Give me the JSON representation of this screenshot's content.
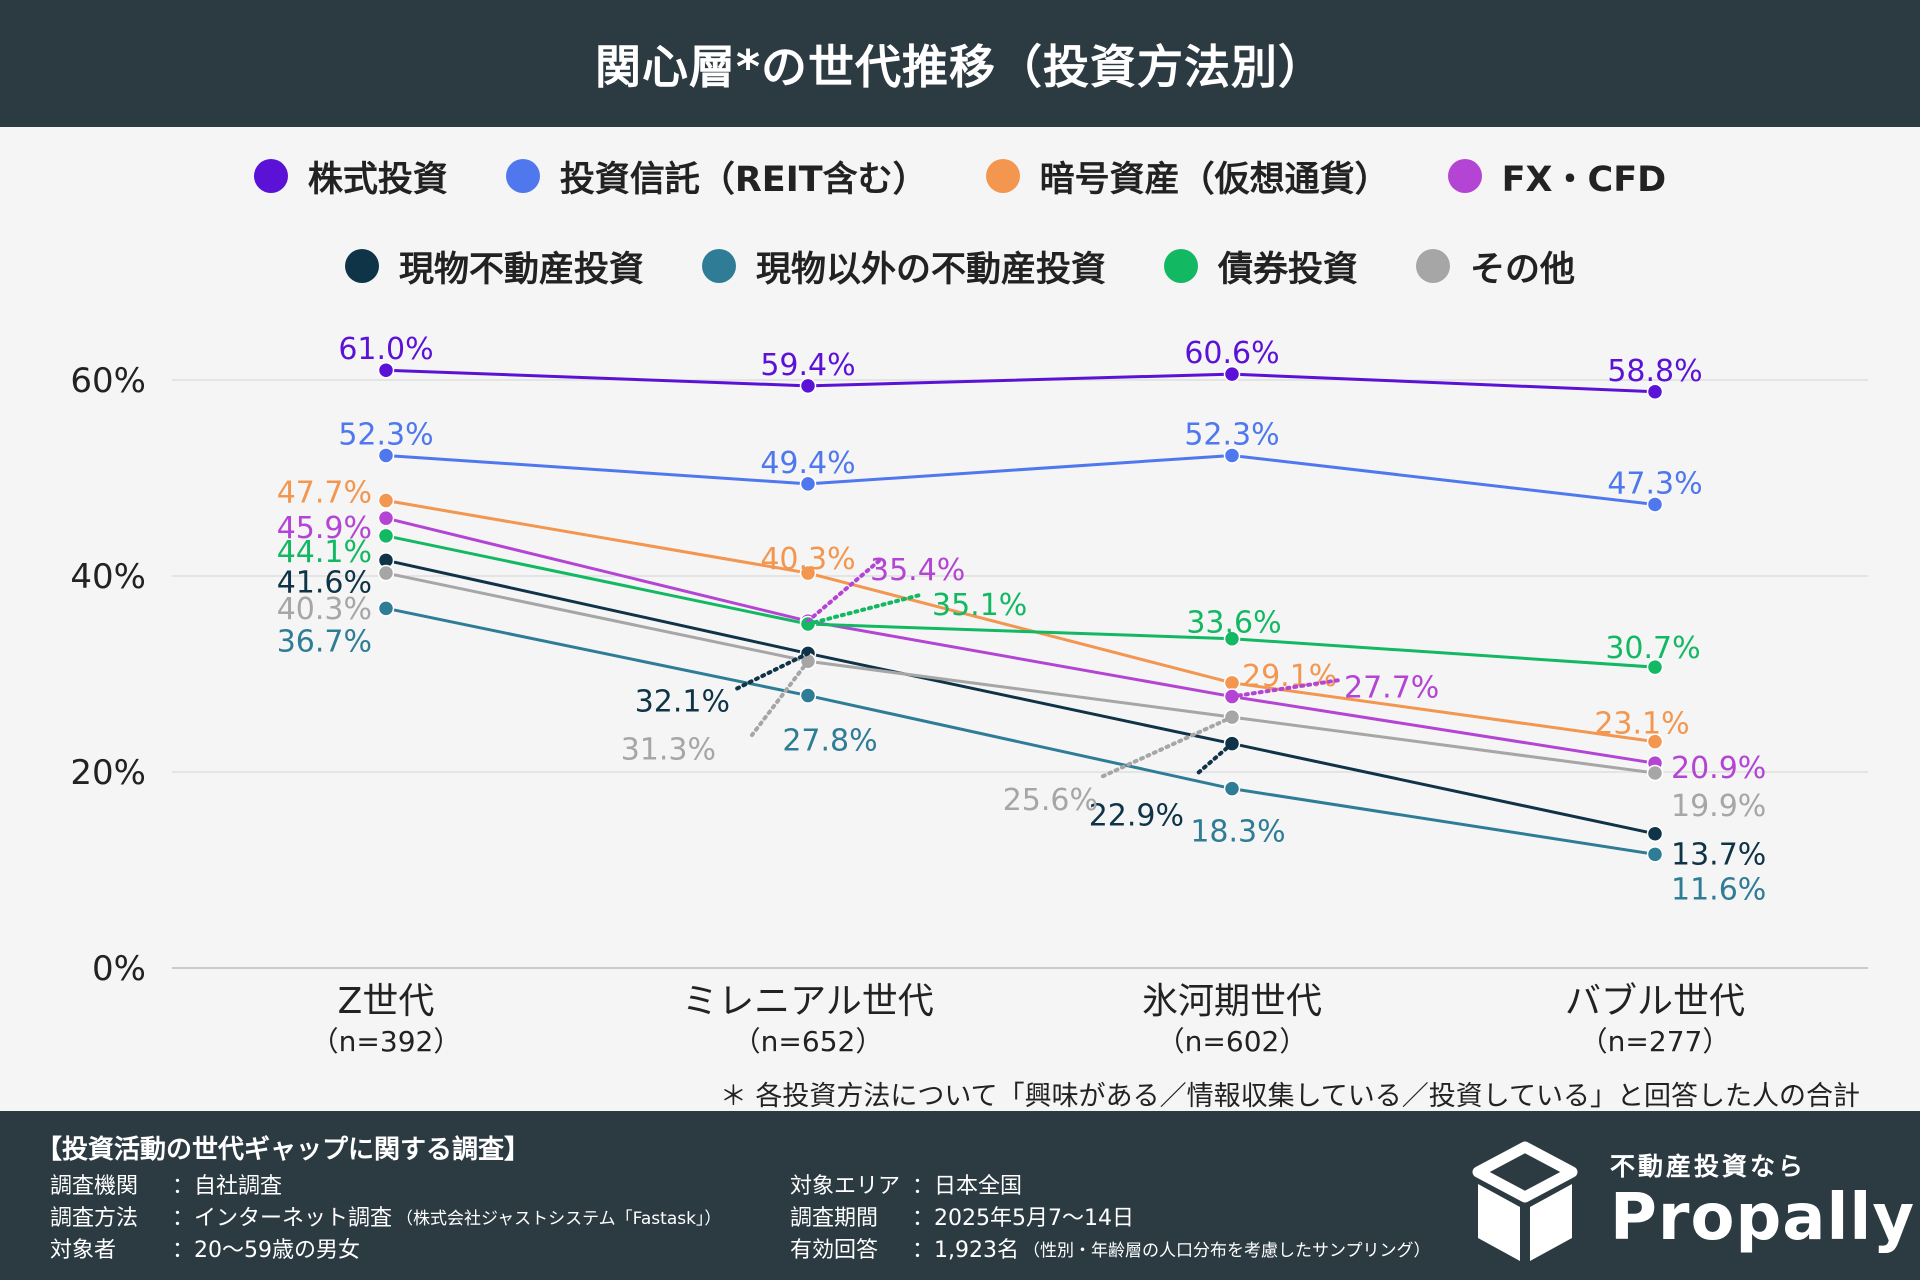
{
  "title": "関心層*の世代推移（投資方法別）",
  "legend_rows": [
    [
      {
        "label": "株式投資",
        "color": "#5b12d6"
      },
      {
        "label": "投資信託（REIT含む）",
        "color": "#4f78ee"
      },
      {
        "label": "暗号資産（仮想通貨）",
        "color": "#f29650"
      },
      {
        "label": "FX・CFD",
        "color": "#b445d4"
      }
    ],
    [
      {
        "label": "現物不動産投資",
        "color": "#0f3347"
      },
      {
        "label": "現物以外の不動産投資",
        "color": "#2f7c96"
      },
      {
        "label": "債券投資",
        "color": "#13b863"
      },
      {
        "label": "その他",
        "color": "#a6a6a6"
      }
    ]
  ],
  "chart_data": {
    "type": "line",
    "categories": [
      "Z世代",
      "ミレニアル世代",
      "氷河期世代",
      "バブル世代"
    ],
    "category_samples": [
      "（n=392）",
      "（n=652）",
      "（n=602）",
      "（n=277）"
    ],
    "y_ticks": [
      "0%",
      "20%",
      "40%",
      "60%"
    ],
    "ylim": [
      0,
      60
    ],
    "grid": true,
    "legend_position": "top",
    "series": [
      {
        "name": "株式投資",
        "color": "#5b12d6",
        "values": [
          61.0,
          59.4,
          60.6,
          58.8
        ],
        "labels": [
          "61.0%",
          "59.4%",
          "60.6%",
          "58.8%"
        ]
      },
      {
        "name": "投資信託（REIT含む）",
        "color": "#4f78ee",
        "values": [
          52.3,
          49.4,
          52.3,
          47.3
        ],
        "labels": [
          "52.3%",
          "49.4%",
          "52.3%",
          "47.3%"
        ]
      },
      {
        "name": "暗号資産（仮想通貨）",
        "color": "#f29650",
        "values": [
          47.7,
          40.3,
          29.1,
          23.1
        ],
        "labels": [
          "47.7%",
          "40.3%",
          "29.1%",
          "23.1%"
        ]
      },
      {
        "name": "FX・CFD",
        "color": "#b445d4",
        "values": [
          45.9,
          35.4,
          27.7,
          20.9
        ],
        "labels": [
          "45.9%",
          "35.4%",
          "27.7%",
          "20.9%"
        ]
      },
      {
        "name": "現物不動産投資",
        "color": "#0f3347",
        "values": [
          41.6,
          32.1,
          22.9,
          13.7
        ],
        "labels": [
          "41.6%",
          "32.1%",
          "22.9%",
          "13.7%"
        ]
      },
      {
        "name": "現物以外の不動産投資",
        "color": "#2f7c96",
        "values": [
          36.7,
          27.8,
          18.3,
          11.6
        ],
        "labels": [
          "36.7%",
          "27.8%",
          "18.3%",
          "11.6%"
        ]
      },
      {
        "name": "債券投資",
        "color": "#13b863",
        "values": [
          44.1,
          35.1,
          33.6,
          30.7
        ],
        "labels": [
          "44.1%",
          "35.1%",
          "33.6%",
          "30.7%"
        ]
      },
      {
        "name": "その他",
        "color": "#a6a6a6",
        "values": [
          40.3,
          31.3,
          25.6,
          19.9
        ],
        "labels": [
          "40.3%",
          "31.3%",
          "25.6%",
          "19.9%"
        ]
      }
    ]
  },
  "note": "＊ 各投資方法について「興味がある／情報収集している／投資している」と回答した人の合計",
  "footer": {
    "title": "【投資活動の世代ギャップに関する調査】",
    "left": [
      {
        "label": "調査機関",
        "value": "：自社調査",
        "small": ""
      },
      {
        "label": "調査方法",
        "value": "：インターネット調査",
        "small": "（株式会社ジャストシステム「Fastask」）"
      },
      {
        "label": "対象者",
        "value": "：20〜59歳の男女",
        "small": ""
      }
    ],
    "right": [
      {
        "label": "対象エリア",
        "value": "：日本全国",
        "small": ""
      },
      {
        "label": "調査期間",
        "value": "：2025年5月7〜14日",
        "small": ""
      },
      {
        "label": "有効回答",
        "value": "：1,923名",
        "small": "（性別・年齢層の人口分布を考慮したサンプリング）"
      }
    ],
    "brand_sub": "不動産投資なら",
    "brand_name": "Propally"
  }
}
